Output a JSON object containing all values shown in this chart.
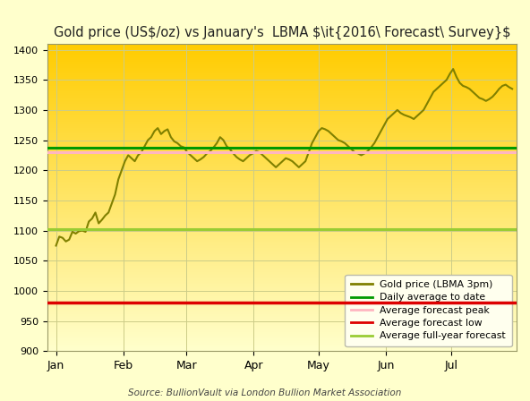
{
  "title_normal": "Gold price (US$/oz) vs January's  LBMA ",
  "title_italic": "2016 Forecast Survey",
  "source_text": "Source: BullionVault via London Bullion Market Association",
  "ylim": [
    900,
    1410
  ],
  "yticks": [
    900,
    950,
    1000,
    1050,
    1100,
    1150,
    1200,
    1250,
    1300,
    1350,
    1400
  ],
  "background_top_color": "#FFCC00",
  "background_bottom_color": "#FFFFCC",
  "legend_bg": "#FFFFEE",
  "line_color": "#808000",
  "daily_avg_color": "#009900",
  "forecast_peak_color": "#FFB6C1",
  "forecast_low_color": "#DD0000",
  "full_year_color": "#99CC33",
  "daily_avg_value": 1237,
  "forecast_peak_value": 1230,
  "forecast_low_value": 980,
  "full_year_value": 1103,
  "month_positions": [
    0,
    31,
    60,
    91,
    121,
    152,
    182
  ],
  "month_labels": [
    "Jan",
    "Feb",
    "Mar",
    "Apr",
    "May",
    "Jun",
    "Jul"
  ],
  "xlim": [
    -4,
    212
  ],
  "gold_prices": [
    1075,
    1090,
    1088,
    1082,
    1085,
    1098,
    1095,
    1099,
    1100,
    1098,
    1115,
    1120,
    1130,
    1112,
    1118,
    1125,
    1130,
    1145,
    1160,
    1185,
    1200,
    1215,
    1225,
    1220,
    1215,
    1225,
    1230,
    1240,
    1250,
    1255,
    1265,
    1270,
    1260,
    1265,
    1268,
    1255,
    1248,
    1245,
    1240,
    1238,
    1230,
    1225,
    1220,
    1215,
    1218,
    1222,
    1228,
    1232,
    1238,
    1245,
    1255,
    1250,
    1240,
    1235,
    1228,
    1222,
    1218,
    1215,
    1220,
    1225,
    1228,
    1232,
    1230,
    1225,
    1220,
    1215,
    1210,
    1205,
    1210,
    1215,
    1220,
    1218,
    1215,
    1210,
    1205,
    1210,
    1215,
    1230,
    1245,
    1255,
    1265,
    1270,
    1268,
    1265,
    1260,
    1255,
    1250,
    1248,
    1245,
    1240,
    1235,
    1230,
    1228,
    1225,
    1228,
    1232,
    1238,
    1245,
    1255,
    1265,
    1275,
    1285,
    1290,
    1295,
    1300,
    1295,
    1292,
    1290,
    1288,
    1285,
    1290,
    1295,
    1300,
    1310,
    1320,
    1330,
    1335,
    1340,
    1345,
    1350,
    1360,
    1368,
    1355,
    1345,
    1340,
    1338,
    1335,
    1330,
    1325,
    1320,
    1318,
    1315,
    1318,
    1322,
    1328,
    1335,
    1340,
    1342,
    1338,
    1335
  ]
}
